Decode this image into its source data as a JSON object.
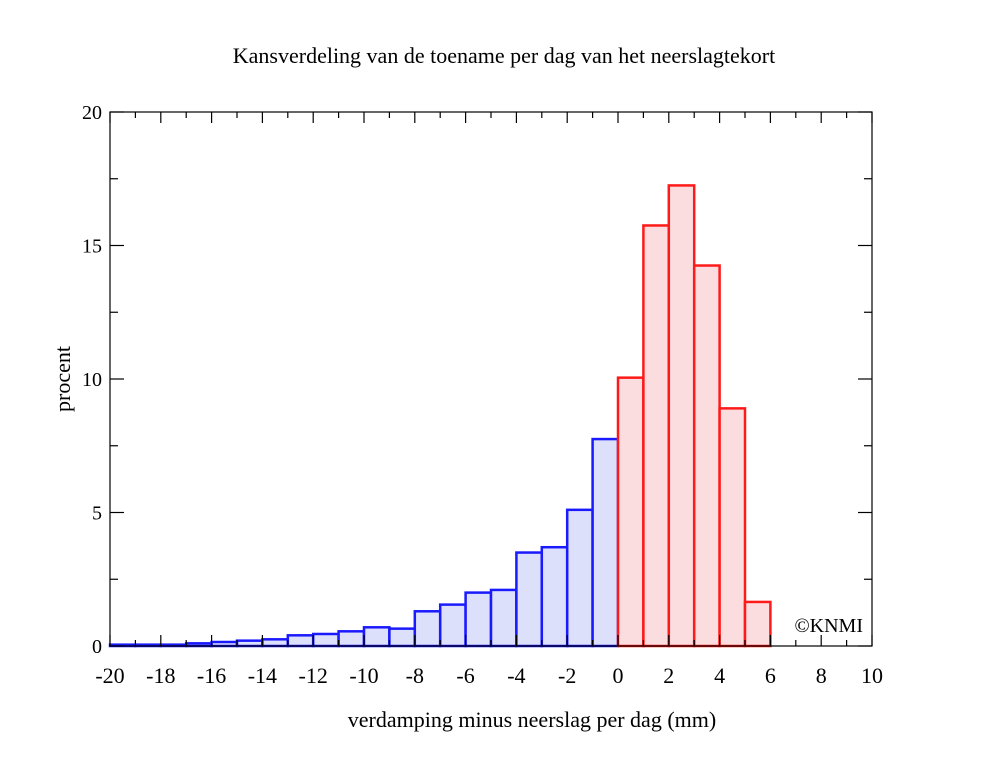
{
  "chart_data": {
    "type": "bar",
    "title": "Kansverdeling van de toename per dag van het neerslagtekort",
    "xlabel": "verdamping minus neerslag per dag (mm)",
    "ylabel": "procent",
    "xlim": [
      -20,
      10
    ],
    "ylim": [
      0,
      20
    ],
    "x_ticks": [
      "-20",
      "-18",
      "-16",
      "-14",
      "-12",
      "-10",
      "-8",
      "-6",
      "-4",
      "-2",
      "0",
      "2",
      "4",
      "6",
      "8",
      "10"
    ],
    "y_ticks": [
      "0",
      "5",
      "10",
      "15",
      "20"
    ],
    "bin_width": 1,
    "bins": [
      {
        "x0": -20,
        "x1": -19,
        "value": 0.05
      },
      {
        "x0": -19,
        "x1": -18,
        "value": 0.05
      },
      {
        "x0": -18,
        "x1": -17,
        "value": 0.05
      },
      {
        "x0": -17,
        "x1": -16,
        "value": 0.1
      },
      {
        "x0": -16,
        "x1": -15,
        "value": 0.15
      },
      {
        "x0": -15,
        "x1": -14,
        "value": 0.2
      },
      {
        "x0": -14,
        "x1": -13,
        "value": 0.25
      },
      {
        "x0": -13,
        "x1": -12,
        "value": 0.4
      },
      {
        "x0": -12,
        "x1": -11,
        "value": 0.45
      },
      {
        "x0": -11,
        "x1": -10,
        "value": 0.55
      },
      {
        "x0": -10,
        "x1": -9,
        "value": 0.7
      },
      {
        "x0": -9,
        "x1": -8,
        "value": 0.65
      },
      {
        "x0": -8,
        "x1": -7,
        "value": 1.3
      },
      {
        "x0": -7,
        "x1": -6,
        "value": 1.55
      },
      {
        "x0": -6,
        "x1": -5,
        "value": 2.0
      },
      {
        "x0": -5,
        "x1": -4,
        "value": 2.1
      },
      {
        "x0": -4,
        "x1": -3,
        "value": 3.5
      },
      {
        "x0": -3,
        "x1": -2,
        "value": 3.7
      },
      {
        "x0": -2,
        "x1": -1,
        "value": 5.1
      },
      {
        "x0": -1,
        "x1": 0,
        "value": 7.75
      },
      {
        "x0": 0,
        "x1": 1,
        "value": 10.05
      },
      {
        "x0": 1,
        "x1": 2,
        "value": 15.75
      },
      {
        "x0": 2,
        "x1": 3,
        "value": 17.25
      },
      {
        "x0": 3,
        "x1": 4,
        "value": 14.25
      },
      {
        "x0": 4,
        "x1": 5,
        "value": 8.9
      },
      {
        "x0": 5,
        "x1": 6,
        "value": 1.65
      },
      {
        "x0": 6,
        "x1": 7,
        "value": 0.0
      },
      {
        "x0": 7,
        "x1": 8,
        "value": 0.0
      },
      {
        "x0": 8,
        "x1": 9,
        "value": 0.0
      },
      {
        "x0": 9,
        "x1": 10,
        "value": 0.0
      }
    ],
    "colors": {
      "negative_edge": "#1a1aff",
      "negative_fill": "#dde0fb",
      "positive_edge": "#ff1a1a",
      "positive_fill": "#fbdde0"
    },
    "annotation": "©KNMI",
    "grid": false
  }
}
